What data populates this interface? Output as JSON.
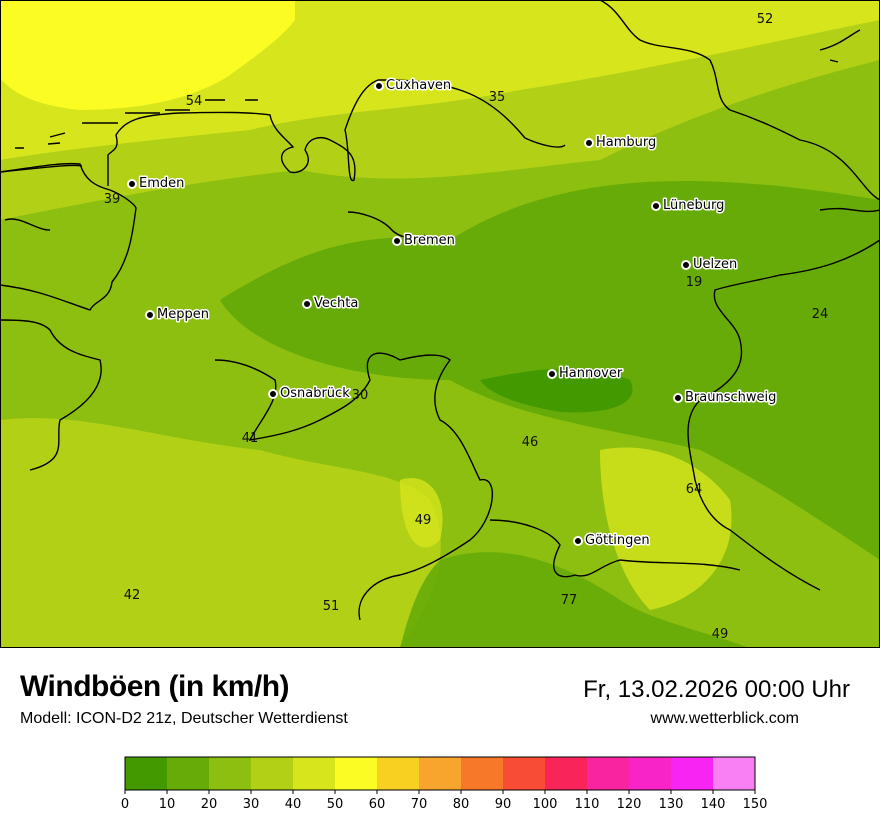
{
  "header": {
    "title": "Windböen (in km/h)",
    "subtitle": "Modell: ICON-D2 21z, Deutscher Wetterdienst",
    "datetime": "Fr, 13.02.2026 00:00 Uhr",
    "website": "www.wetterblick.com"
  },
  "map": {
    "cities": [
      "Cuxhaven",
      "Hamburg",
      "Emden",
      "Lüneburg",
      "Bremen",
      "Uelzen",
      "Vechta",
      "Meppen",
      "Hannover",
      "Osnabrück",
      "Braunschweig",
      "Göttingen"
    ],
    "value_labels": [
      "52",
      "54",
      "35",
      "39",
      "19",
      "24",
      "30",
      "41",
      "46",
      "64",
      "49",
      "42",
      "51",
      "77",
      "49"
    ]
  },
  "legend": {
    "unit": "km/h",
    "ticks": [
      "0",
      "10",
      "20",
      "30",
      "40",
      "50",
      "60",
      "70",
      "80",
      "90",
      "100",
      "110",
      "120",
      "130",
      "140",
      "150"
    ],
    "colors": [
      "#439a00",
      "#67ab08",
      "#8cbf0f",
      "#b1d016",
      "#d6e51c",
      "#fafc24",
      "#f8d022",
      "#f7a52c",
      "#f8782a",
      "#f84c34",
      "#f8245a",
      "#f824a0",
      "#f824c8",
      "#f824f4",
      "#f880f4"
    ]
  }
}
